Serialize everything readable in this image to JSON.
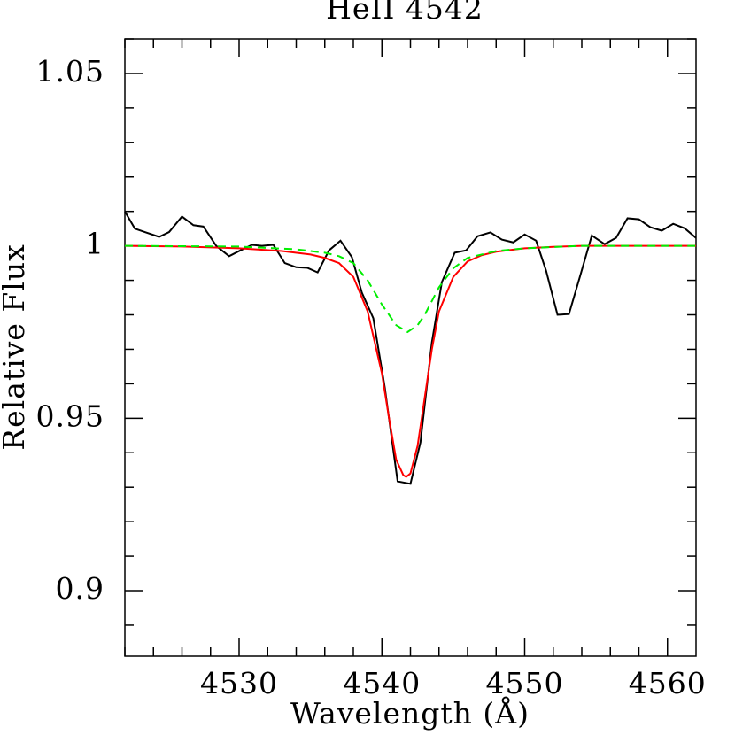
{
  "chart_data": {
    "type": "line",
    "title": "HeII 4542",
    "x_label": "Wavelength (Å)",
    "y_label": "Relative Flux",
    "xlim": [
      4522,
      4562
    ],
    "ylim": [
      0.881,
      1.06
    ],
    "xticks": [
      4530,
      4540,
      4550,
      4560
    ],
    "yticks": [
      0.9,
      0.95,
      1,
      1.05
    ],
    "xminorticks": [
      4522,
      4524,
      4526,
      4528,
      4532,
      4534,
      4536,
      4538,
      4542,
      4544,
      4546,
      4548,
      4552,
      4554,
      4556,
      4558
    ],
    "yminorticks": [
      0.89,
      0.91,
      0.92,
      0.93,
      0.94,
      0.96,
      0.97,
      0.98,
      0.99,
      1.01,
      1.02,
      1.03,
      1.04,
      1.06
    ],
    "series": [
      {
        "color": "#000000",
        "dashed": false,
        "x": [
          4522.0,
          4522.7,
          4523.4,
          4524.4,
          4525.1,
          4526.0,
          4526.8,
          4527.5,
          4528.4,
          4529.3,
          4530.1,
          4530.9,
          4531.6,
          4532.4,
          4533.2,
          4534.0,
          4534.8,
          4535.5,
          4536.3,
          4537.1,
          4537.9,
          4538.6,
          4539.4,
          4540.2,
          4541.1,
          4542.0,
          4542.7,
          4543.5,
          4544.2,
          4545.1,
          4545.9,
          4546.7,
          4547.6,
          4548.4,
          4549.2,
          4550.0,
          4550.8,
          4551.5,
          4552.3,
          4553.1,
          4553.9,
          4554.7,
          4555.6,
          4556.4,
          4557.2,
          4558.0,
          4558.8,
          4559.6,
          4560.4,
          4561.2,
          4562.0
        ],
        "values": [
          1.01,
          1.005,
          1.004,
          1.0026,
          1.004,
          1.0085,
          1.006,
          1.0056,
          1.0,
          0.997,
          0.9987,
          1.0003,
          1.0,
          1.0003,
          0.995,
          0.9938,
          0.9936,
          0.9923,
          0.9987,
          1.0015,
          0.9967,
          0.9864,
          0.979,
          0.959,
          0.9317,
          0.931,
          0.943,
          0.972,
          0.9895,
          0.998,
          0.9987,
          1.0028,
          1.0039,
          1.0018,
          1.001,
          1.0033,
          1.0015,
          0.9928,
          0.98,
          0.9802,
          0.9915,
          1.003,
          1.0005,
          1.0023,
          1.008,
          1.0077,
          1.0054,
          1.0044,
          1.0064,
          1.0051,
          1.0023
        ]
      },
      {
        "color": "#ff0000",
        "dashed": false,
        "x": [
          4522,
          4526,
          4530,
          4533,
          4535,
          4536,
          4537,
          4538,
          4539,
          4540,
          4540.5,
          4541,
          4541.5,
          4541.7,
          4542,
          4542.5,
          4543,
          4543.5,
          4544,
          4545,
          4546,
          4547,
          4548,
          4550,
          4552,
          4554,
          4558,
          4562
        ],
        "values": [
          1.0,
          0.9998,
          0.9993,
          0.9985,
          0.9975,
          0.9965,
          0.995,
          0.991,
          0.981,
          0.963,
          0.95,
          0.938,
          0.9335,
          0.933,
          0.934,
          0.942,
          0.956,
          0.97,
          0.981,
          0.991,
          0.9955,
          0.9973,
          0.9983,
          0.9993,
          0.9997,
          1.0,
          1.0,
          1.0
        ]
      },
      {
        "color": "#00ee00",
        "dashed": true,
        "x": [
          4522,
          4530,
          4534,
          4536,
          4537,
          4538,
          4539,
          4540,
          4541,
          4541.8,
          4542.5,
          4543,
          4544,
          4545,
          4546,
          4548,
          4550,
          4554,
          4562
        ],
        "values": [
          1,
          0.9998,
          0.999,
          0.998,
          0.997,
          0.995,
          0.99,
          0.983,
          0.977,
          0.975,
          0.977,
          0.98,
          0.988,
          0.9935,
          0.9965,
          0.9985,
          0.9993,
          1,
          1
        ]
      }
    ]
  }
}
